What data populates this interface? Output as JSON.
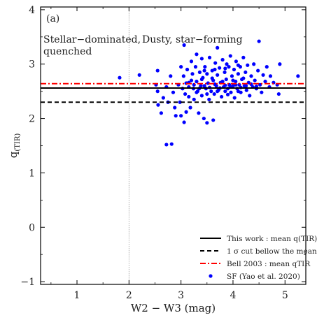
{
  "chart_data": {
    "type": "scatter",
    "panel_label": "(a)",
    "xlabel": "W2 − W3 (mag)",
    "ylabel_main": "q",
    "ylabel_sub": "(TIR)",
    "xlim": [
      0.3,
      5.4
    ],
    "ylim": [
      -1.05,
      4.05
    ],
    "xticks": [
      {
        "value": 1,
        "label": "1"
      },
      {
        "value": 2,
        "label": "2"
      },
      {
        "value": 3,
        "label": "3"
      },
      {
        "value": 4,
        "label": "4"
      },
      {
        "value": 5,
        "label": "5"
      }
    ],
    "yticks": [
      {
        "value": -1,
        "label": "−1"
      },
      {
        "value": 0,
        "label": "0"
      },
      {
        "value": 1,
        "label": "1"
      },
      {
        "value": 2,
        "label": "2"
      },
      {
        "value": 3,
        "label": "3"
      },
      {
        "value": 4,
        "label": "4"
      }
    ],
    "region_annotations": [
      {
        "lines": [
          "Stellar−dominated,",
          "quenched"
        ]
      },
      {
        "lines": [
          "Dusty, star−forming"
        ]
      }
    ],
    "divider_x": 2.0,
    "reference_lines": [
      {
        "name": "This work : mean q(TIR)",
        "y": 2.56,
        "color": "#000000",
        "style": "solid"
      },
      {
        "name": "1 σ cut bellow the mean",
        "y": 2.3,
        "color": "#000000",
        "style": "dashed"
      },
      {
        "name": "Bell 2003 : mean qTIR",
        "y": 2.64,
        "color": "#ff0000",
        "style": "dashdot"
      }
    ],
    "series": [
      {
        "name": "SF (Yao et al. 2020)",
        "color": "#0000ff",
        "points": [
          [
            1.82,
            2.75
          ],
          [
            2.2,
            2.8
          ],
          [
            2.55,
            2.88
          ],
          [
            2.52,
            2.62
          ],
          [
            2.56,
            2.25
          ],
          [
            2.55,
            2.5
          ],
          [
            2.62,
            2.1
          ],
          [
            2.66,
            2.38
          ],
          [
            2.72,
            2.58
          ],
          [
            2.75,
            2.3
          ],
          [
            2.72,
            1.52
          ],
          [
            2.82,
            1.53
          ],
          [
            2.8,
            2.78
          ],
          [
            2.85,
            2.48
          ],
          [
            2.88,
            2.2
          ],
          [
            2.9,
            2.05
          ],
          [
            2.95,
            2.62
          ],
          [
            2.98,
            2.3
          ],
          [
            3.0,
            2.95
          ],
          [
            3.0,
            2.05
          ],
          [
            3.03,
            2.55
          ],
          [
            3.05,
            2.78
          ],
          [
            3.06,
            1.93
          ],
          [
            3.08,
            2.45
          ],
          [
            3.1,
            2.12
          ],
          [
            3.06,
            3.35
          ],
          [
            3.12,
            2.9
          ],
          [
            3.15,
            2.66
          ],
          [
            3.15,
            2.4
          ],
          [
            3.18,
            2.2
          ],
          [
            3.2,
            3.05
          ],
          [
            3.22,
            2.82
          ],
          [
            3.24,
            2.55
          ],
          [
            3.25,
            2.35
          ],
          [
            3.28,
            2.95
          ],
          [
            3.3,
            2.68
          ],
          [
            3.3,
            3.18
          ],
          [
            3.32,
            2.5
          ],
          [
            3.34,
            2.1
          ],
          [
            3.36,
            2.85
          ],
          [
            3.38,
            2.6
          ],
          [
            3.4,
            3.1
          ],
          [
            3.4,
            2.42
          ],
          [
            3.42,
            2.75
          ],
          [
            3.44,
            2.0
          ],
          [
            3.46,
            2.95
          ],
          [
            3.48,
            2.55
          ],
          [
            3.5,
            2.82
          ],
          [
            3.5,
            1.92
          ],
          [
            3.52,
            2.65
          ],
          [
            3.54,
            2.35
          ],
          [
            3.55,
            3.12
          ],
          [
            3.58,
            2.5
          ],
          [
            3.6,
            2.88
          ],
          [
            3.62,
            2.7
          ],
          [
            3.62,
            1.97
          ],
          [
            3.64,
            2.45
          ],
          [
            3.66,
            3.02
          ],
          [
            3.68,
            2.6
          ],
          [
            3.7,
            2.8
          ],
          [
            3.7,
            3.3
          ],
          [
            3.72,
            2.52
          ],
          [
            3.74,
            2.93
          ],
          [
            3.76,
            2.66
          ],
          [
            3.78,
            2.4
          ],
          [
            3.8,
            3.08
          ],
          [
            3.82,
            2.58
          ],
          [
            3.84,
            2.85
          ],
          [
            3.85,
            2.5
          ],
          [
            3.87,
            2.72
          ],
          [
            3.88,
            3.0
          ],
          [
            3.9,
            2.55
          ],
          [
            3.92,
            2.95
          ],
          [
            3.93,
            2.62
          ],
          [
            3.95,
            3.15
          ],
          [
            3.96,
            2.48
          ],
          [
            3.98,
            2.78
          ],
          [
            4.0,
            2.6
          ],
          [
            4.02,
            2.9
          ],
          [
            4.03,
            2.38
          ],
          [
            4.05,
            2.68
          ],
          [
            4.06,
            3.05
          ],
          [
            4.08,
            2.55
          ],
          [
            4.1,
            2.82
          ],
          [
            4.12,
            2.62
          ],
          [
            4.14,
            2.95
          ],
          [
            4.15,
            2.48
          ],
          [
            4.17,
            2.72
          ],
          [
            4.2,
            3.12
          ],
          [
            4.22,
            2.6
          ],
          [
            4.24,
            2.85
          ],
          [
            4.26,
            2.52
          ],
          [
            4.28,
            2.98
          ],
          [
            4.3,
            2.66
          ],
          [
            4.32,
            2.42
          ],
          [
            4.35,
            2.78
          ],
          [
            4.38,
            2.58
          ],
          [
            4.4,
            3.0
          ],
          [
            4.42,
            2.7
          ],
          [
            4.45,
            2.55
          ],
          [
            4.48,
            2.88
          ],
          [
            4.5,
            3.42
          ],
          [
            4.52,
            2.62
          ],
          [
            4.55,
            2.48
          ],
          [
            4.58,
            2.8
          ],
          [
            4.62,
            2.68
          ],
          [
            4.65,
            2.95
          ],
          [
            4.7,
            2.58
          ],
          [
            4.72,
            2.78
          ],
          [
            4.78,
            2.66
          ],
          [
            4.85,
            2.62
          ],
          [
            4.88,
            2.45
          ],
          [
            4.9,
            3.0
          ],
          [
            5.25,
            2.78
          ],
          [
            3.15,
            2.58
          ],
          [
            3.25,
            2.62
          ],
          [
            3.35,
            2.55
          ],
          [
            3.45,
            2.6
          ],
          [
            3.55,
            2.57
          ],
          [
            3.65,
            2.63
          ],
          [
            3.75,
            2.56
          ],
          [
            3.85,
            2.61
          ],
          [
            3.95,
            2.58
          ],
          [
            4.05,
            2.62
          ],
          [
            4.15,
            2.57
          ],
          [
            4.25,
            2.6
          ],
          [
            4.35,
            2.63
          ],
          [
            4.45,
            2.59
          ],
          [
            3.2,
            2.7
          ],
          [
            3.4,
            2.72
          ],
          [
            3.6,
            2.74
          ],
          [
            3.8,
            2.68
          ],
          [
            4.0,
            2.7
          ],
          [
            4.2,
            2.74
          ],
          [
            3.3,
            2.48
          ],
          [
            3.5,
            2.45
          ],
          [
            3.7,
            2.5
          ],
          [
            3.9,
            2.44
          ],
          [
            4.1,
            2.5
          ],
          [
            3.1,
            2.65
          ],
          [
            3.45,
            2.88
          ],
          [
            3.65,
            2.9
          ],
          [
            3.85,
            2.92
          ],
          [
            4.1,
            2.98
          ]
        ]
      }
    ],
    "legend_position": "bottom-right",
    "grid": false
  }
}
